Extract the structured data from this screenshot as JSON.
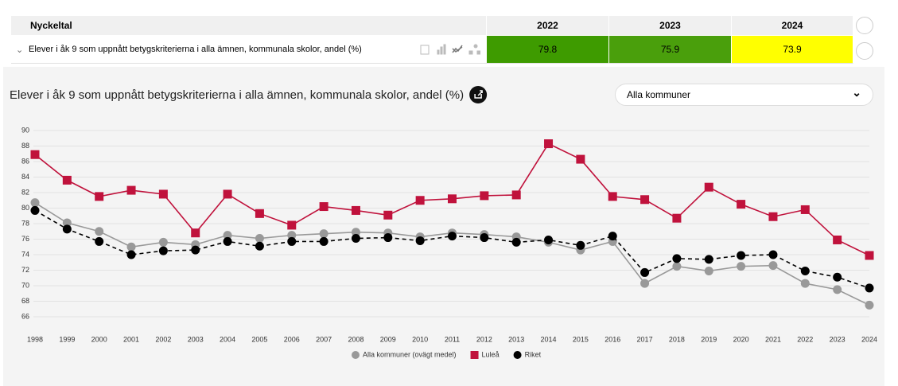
{
  "table": {
    "headers": [
      "Nyckeltal",
      "2022",
      "2023",
      "2024"
    ],
    "rows": [
      {
        "label": "Elever i åk 9 som uppnått betygskriterierna i alla ämnen, kommunala skolor, andel (%)",
        "cells": [
          {
            "value": 79.8,
            "color": "#3e9b00"
          },
          {
            "value": 75.9,
            "color": "#4a9f0c"
          },
          {
            "value": 73.9,
            "color": "#ffff00"
          }
        ]
      }
    ]
  },
  "dropdown": "Alla kommuner",
  "chart_data": {
    "type": "line",
    "title": "Elever i åk 9 som uppnått betygskriterierna i alla ämnen, kommunala skolor, andel (%)",
    "categories": [
      "1998",
      "1999",
      "2000",
      "2001",
      "2002",
      "2003",
      "2004",
      "2005",
      "2006",
      "2007",
      "2008",
      "2009",
      "2010",
      "2011",
      "2012",
      "2013",
      "2014",
      "2015",
      "2016",
      "2017",
      "2018",
      "2019",
      "2020",
      "2021",
      "2022",
      "2023",
      "2024"
    ],
    "series": [
      {
        "name": "Alla kommuner (ovägt medel)",
        "color": "#999999",
        "marker": "circle",
        "dash": false,
        "values": [
          80.7,
          78.1,
          77.0,
          75.0,
          75.6,
          75.3,
          76.5,
          76.1,
          76.5,
          76.7,
          76.9,
          76.8,
          76.3,
          76.8,
          76.6,
          76.3,
          75.6,
          74.6,
          75.7,
          70.3,
          72.5,
          71.9,
          72.5,
          72.6,
          70.3,
          69.5,
          67.5
        ]
      },
      {
        "name": "Luleå",
        "color": "#c0123c",
        "marker": "square",
        "dash": false,
        "values": [
          86.9,
          83.6,
          81.5,
          82.3,
          81.8,
          76.8,
          81.8,
          79.3,
          77.8,
          80.2,
          79.7,
          79.1,
          81.0,
          81.2,
          81.6,
          81.7,
          88.3,
          86.3,
          81.5,
          81.1,
          78.7,
          82.7,
          80.5,
          78.9,
          79.8,
          75.9,
          73.9
        ]
      },
      {
        "name": "Riket",
        "color": "#000000",
        "marker": "circle",
        "dash": true,
        "values": [
          79.7,
          77.3,
          75.7,
          74.0,
          74.5,
          74.6,
          75.7,
          75.1,
          75.7,
          75.7,
          76.1,
          76.2,
          75.8,
          76.4,
          76.2,
          75.6,
          75.9,
          75.2,
          76.4,
          71.7,
          73.5,
          73.4,
          73.9,
          74.0,
          71.9,
          71.1,
          69.7
        ]
      }
    ],
    "ylim": [
      65,
      90
    ],
    "yticks": [
      66,
      68,
      70,
      72,
      74,
      76,
      78,
      80,
      82,
      84,
      86,
      88,
      90
    ],
    "grid": true
  }
}
